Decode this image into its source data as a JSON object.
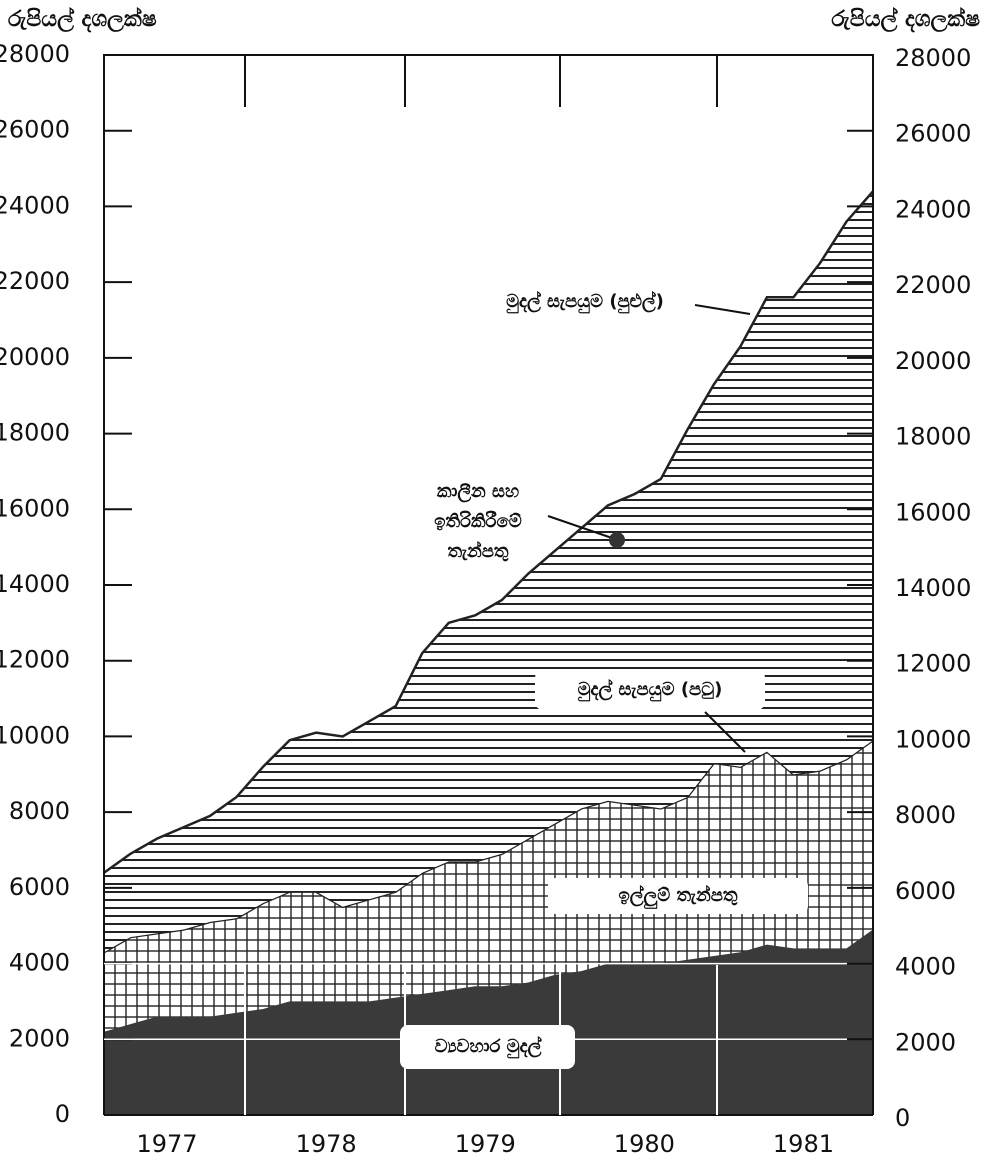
{
  "chart_data": {
    "type": "stacked_area",
    "y_axis_label": "රුපියල් දශලක්ෂ",
    "y2_axis_label": "රුපියල් දශලක්ෂ",
    "categories": [
      null,
      null,
      "1977",
      null,
      null,
      null,
      null,
      null,
      "1978",
      null,
      null,
      null,
      null,
      null,
      "1979",
      null,
      null,
      null,
      null,
      null,
      "1980",
      null,
      null,
      null,
      null,
      null,
      "1981",
      null,
      null,
      null
    ],
    "series": [
      {
        "name": "ව්‍යවහාර මුදල්",
        "color": "#3a3a3a",
        "pattern": "solid",
        "values": [
          2200,
          2400,
          2600,
          2600,
          2600,
          2700,
          2800,
          3000,
          3000,
          3000,
          3000,
          3100,
          3200,
          3300,
          3400,
          3400,
          3500,
          3700,
          3800,
          4000,
          4000,
          4000,
          4100,
          4200,
          4300,
          4500,
          4400,
          4400,
          4400,
          4900
        ]
      },
      {
        "name": "ඉල්ලුම් තැන්පතු",
        "color": "#222222",
        "pattern": "grid",
        "values": [
          2100,
          2300,
          2200,
          2300,
          2500,
          2500,
          2800,
          2900,
          2900,
          2500,
          2700,
          2800,
          3200,
          3400,
          3300,
          3500,
          3800,
          4000,
          4300,
          4300,
          4200,
          4100,
          4300,
          5100,
          4900,
          5100,
          4600,
          4700,
          5000,
          5000
        ]
      },
      {
        "name": [
          "කාලීන සහ",
          "ඉතිරිකිරීමේ",
          "තැන්පතු"
        ],
        "color": "#222222",
        "pattern": "horizontal",
        "values": [
          2100,
          2200,
          2500,
          2700,
          2800,
          3200,
          3600,
          4000,
          4200,
          4500,
          4700,
          4900,
          5800,
          6300,
          6500,
          6700,
          7000,
          7200,
          7400,
          7800,
          8200,
          8700,
          9700,
          10000,
          11100,
          12000,
          12600,
          13400,
          14200,
          14500
        ]
      }
    ],
    "annotations": [
      "මුදල් සැපයුම (පුළුල්)",
      "මුදල් සැපයුම (පටු)"
    ],
    "ylim": [
      0,
      28000
    ],
    "yticks": [
      0,
      2000,
      4000,
      6000,
      8000,
      10000,
      12000,
      14000,
      16000,
      18000,
      20000,
      22000,
      24000,
      26000,
      28000
    ],
    "y2lim": [
      0,
      28000
    ],
    "y2ticks": [
      0,
      2000,
      4000,
      6000,
      8000,
      10000,
      12000,
      14000,
      16000,
      18000,
      20000,
      22000,
      24000,
      26000,
      28000
    ]
  }
}
